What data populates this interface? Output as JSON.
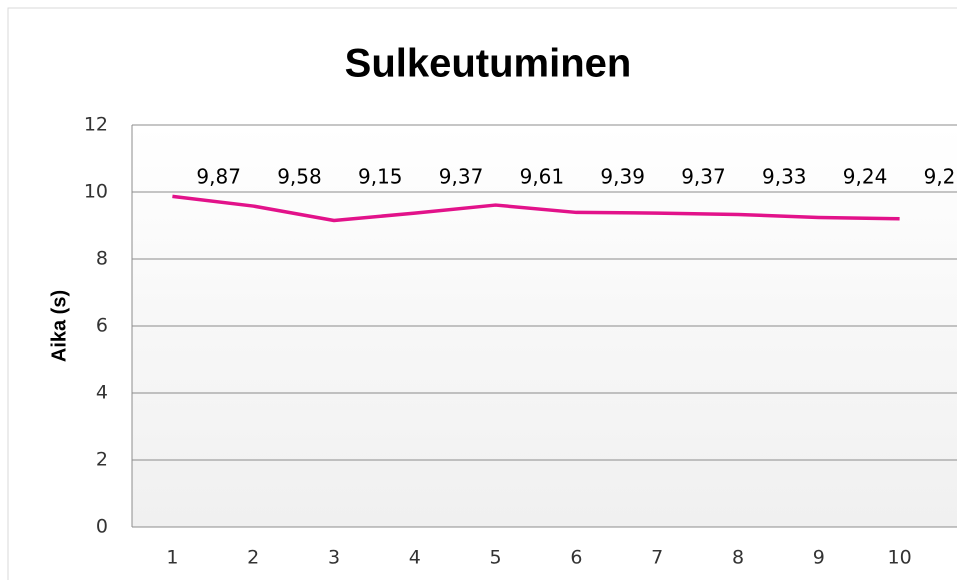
{
  "chart_data": {
    "type": "line",
    "title": "Sulkeutuminen",
    "y_label": "Aika (s)",
    "categories": [
      "1",
      "2",
      "3",
      "4",
      "5",
      "6",
      "7",
      "8",
      "9",
      "10"
    ],
    "series": [
      {
        "name": "Aika",
        "color": "#e2128a",
        "values": [
          9.87,
          9.58,
          9.15,
          9.37,
          9.61,
          9.39,
          9.37,
          9.33,
          9.24,
          9.2
        ],
        "value_labels": [
          "9,87",
          "9,58",
          "9,15",
          "9,37",
          "9,61",
          "9,39",
          "9,37",
          "9,33",
          "9,24",
          "9,2"
        ]
      }
    ],
    "ylim": [
      0,
      12
    ],
    "yticks": [
      0,
      2,
      4,
      6,
      8,
      10,
      12
    ],
    "grid": true
  }
}
